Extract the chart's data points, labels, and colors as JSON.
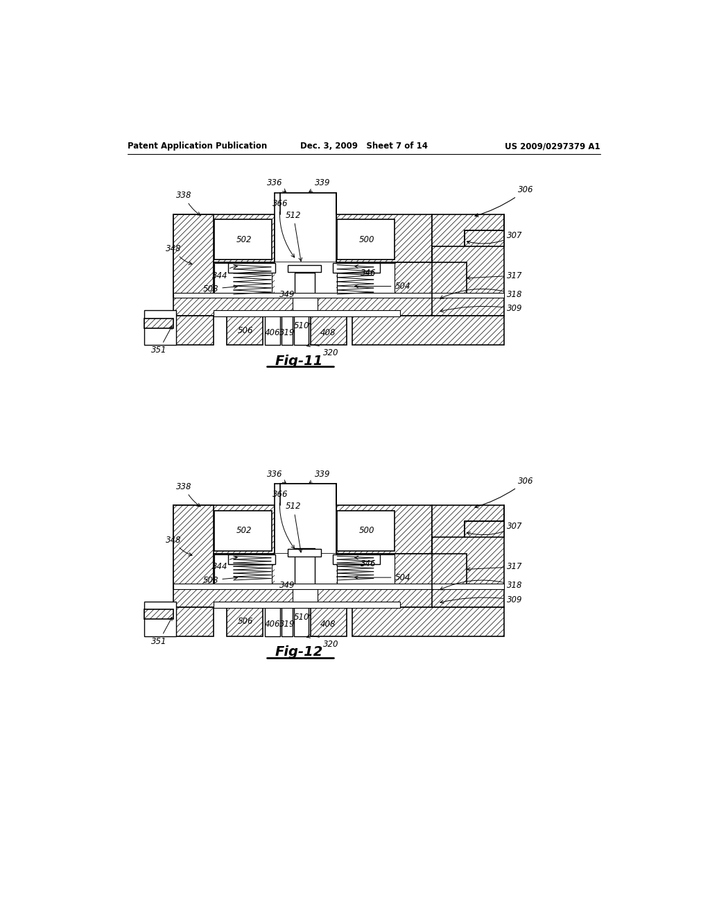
{
  "background_color": "#ffffff",
  "header_left": "Patent Application Publication",
  "header_center": "Dec. 3, 2009   Sheet 7 of 14",
  "header_right": "US 2009/0297379 A1",
  "fig11_caption": "Fig-11",
  "fig12_caption": "Fig-12"
}
